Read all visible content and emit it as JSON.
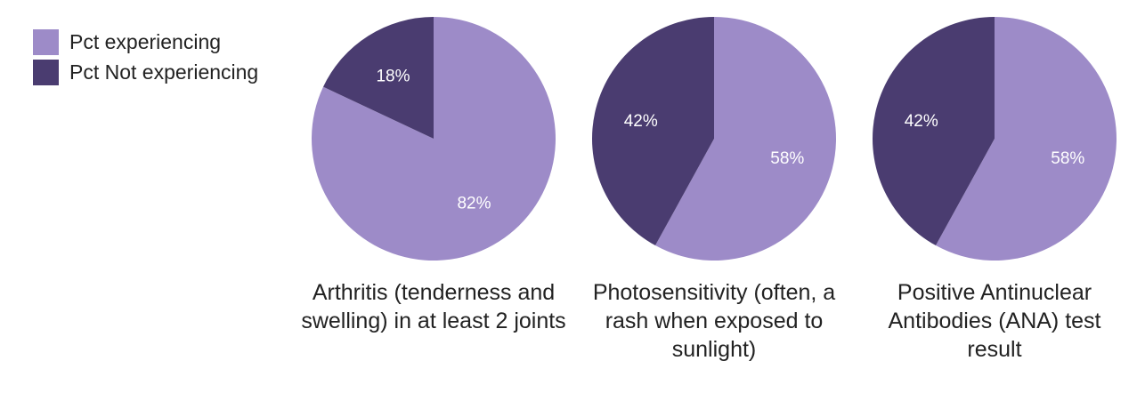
{
  "legend": [
    {
      "label": "Pct experiencing",
      "color": "#9d8bc8"
    },
    {
      "label": "Pct Not experiencing",
      "color": "#4a3c70"
    }
  ],
  "chart_data": [
    {
      "type": "pie",
      "title": "Arthritis (tenderness and swelling) in at least 2 joints",
      "labels": [
        "Pct experiencing",
        "Pct Not experiencing"
      ],
      "values": [
        82,
        18
      ],
      "colors": [
        "#9d8bc8",
        "#4a3c70"
      ],
      "value_labels": [
        "82%",
        "18%"
      ]
    },
    {
      "type": "pie",
      "title": "Photosensitivity (often, a rash when exposed to sunlight)",
      "labels": [
        "Pct experiencing",
        "Pct Not experiencing"
      ],
      "values": [
        58,
        42
      ],
      "colors": [
        "#9d8bc8",
        "#4a3c70"
      ],
      "value_labels": [
        "58%",
        "42%"
      ]
    },
    {
      "type": "pie",
      "title": "Positive Antinuclear Antibodies (ANA) test result",
      "labels": [
        "Pct experiencing",
        "Pct Not experiencing"
      ],
      "values": [
        58,
        42
      ],
      "colors": [
        "#9d8bc8",
        "#4a3c70"
      ],
      "value_labels": [
        "58%",
        "42%"
      ]
    }
  ]
}
